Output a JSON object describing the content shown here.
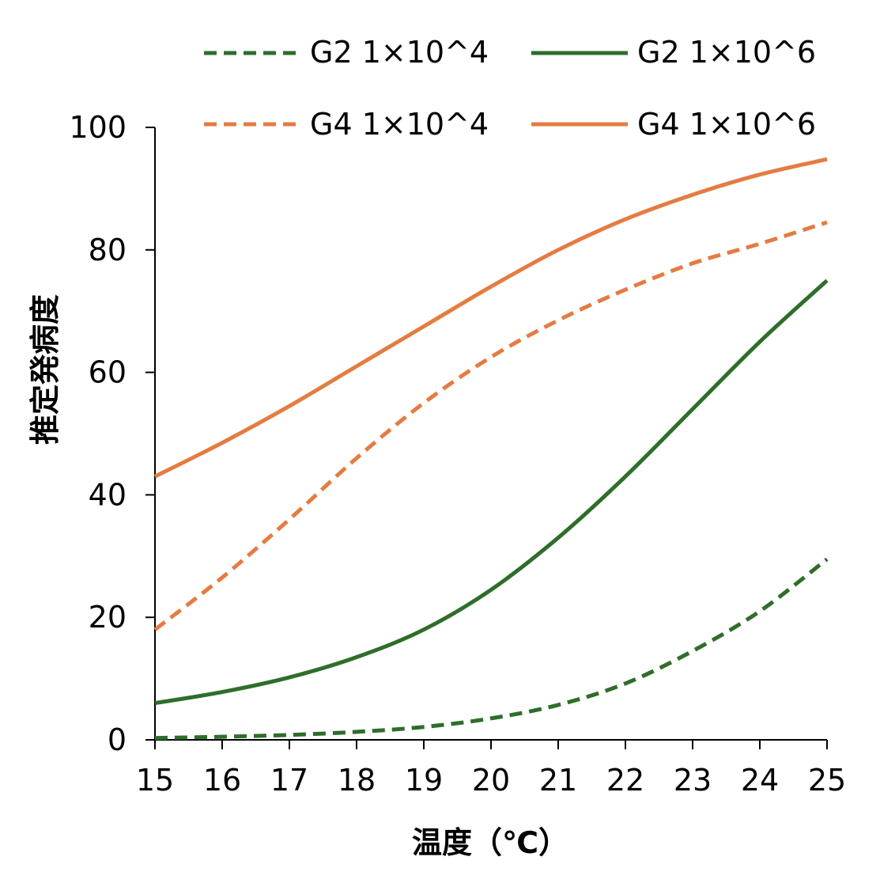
{
  "chart_data": {
    "type": "line",
    "title": "",
    "xlabel": "温度（℃）",
    "ylabel": "推定発病度",
    "xlim": [
      15,
      25
    ],
    "ylim": [
      0,
      100
    ],
    "x_ticks": [
      15,
      16,
      17,
      18,
      19,
      20,
      21,
      22,
      23,
      24,
      25
    ],
    "y_ticks": [
      0,
      20,
      40,
      60,
      80,
      100
    ],
    "grid": false,
    "legend_position": "top",
    "x": [
      15,
      16,
      17,
      18,
      19,
      20,
      21,
      22,
      23,
      24,
      25
    ],
    "series": [
      {
        "name": "G2 1×10^4",
        "color": "#2e6e2a",
        "dash": true,
        "values": [
          0.3,
          0.5,
          0.8,
          1.3,
          2.1,
          3.5,
          5.7,
          9.2,
          14.5,
          21.0,
          29.5
        ]
      },
      {
        "name": "G2 1×10^6",
        "color": "#2e6e2a",
        "dash": false,
        "values": [
          6.0,
          7.8,
          10.2,
          13.5,
          18.0,
          24.5,
          33.0,
          43.0,
          54.0,
          65.0,
          75.0
        ]
      },
      {
        "name": "G4 1×10^4",
        "color": "#e47c42",
        "dash": true,
        "values": [
          18.0,
          26.5,
          36.0,
          46.0,
          55.0,
          62.5,
          68.5,
          73.5,
          77.8,
          81.0,
          84.5
        ]
      },
      {
        "name": "G4 1×10^6",
        "color": "#e47c42",
        "dash": false,
        "values": [
          43.0,
          48.5,
          54.5,
          61.0,
          67.5,
          74.0,
          80.0,
          85.0,
          89.0,
          92.3,
          94.8
        ]
      }
    ]
  }
}
